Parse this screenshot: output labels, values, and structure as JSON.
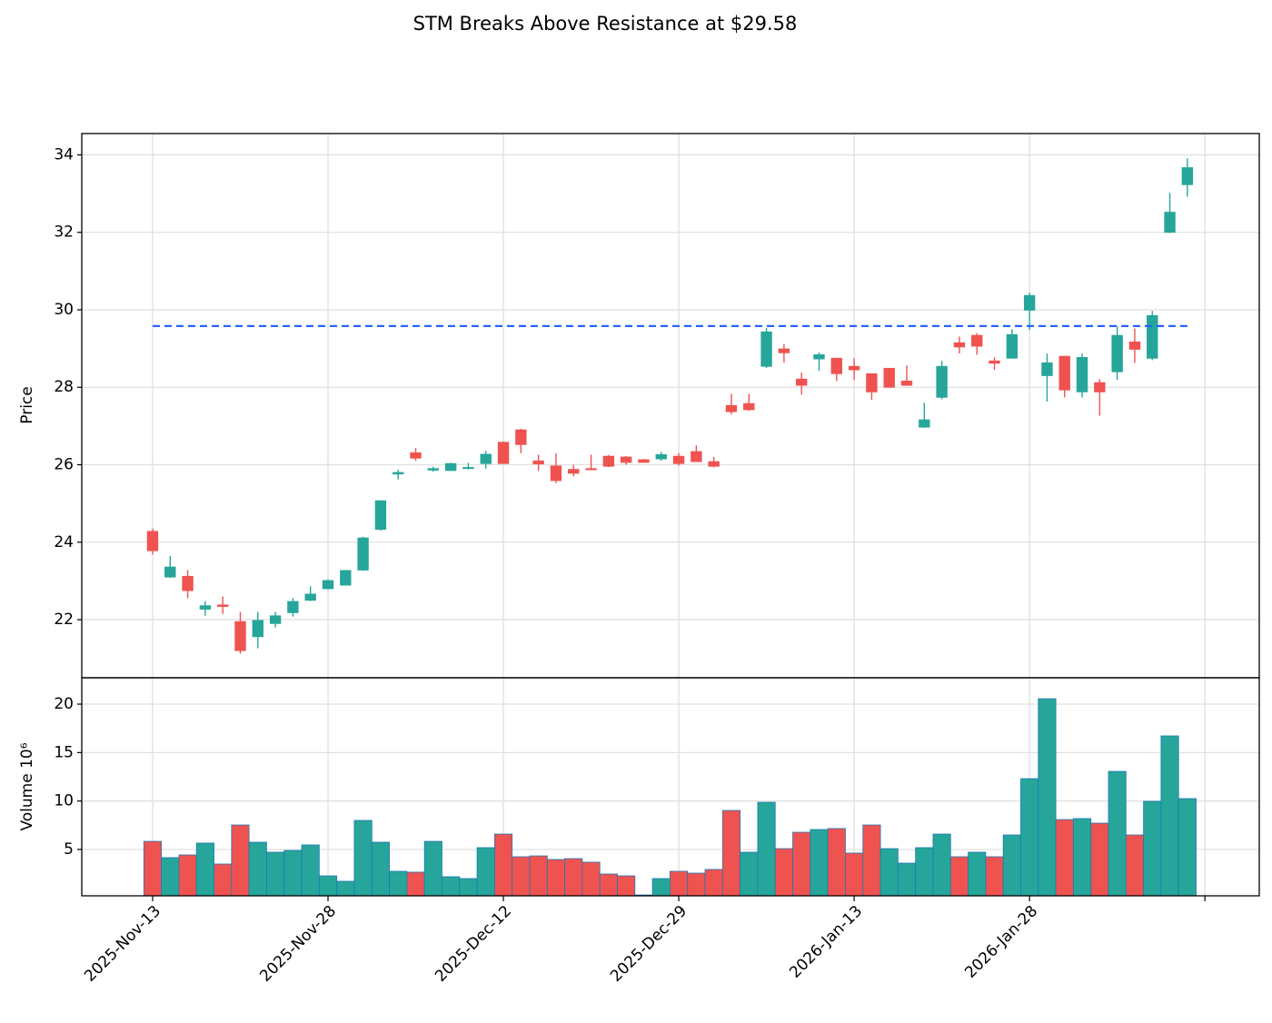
{
  "chart_data": {
    "type": "candlestick",
    "title": "STM Breaks Above Resistance at $29.58",
    "ylabel": "Price",
    "categories": [
      "2025-Nov-13",
      null,
      null,
      null,
      null,
      null,
      null,
      null,
      null,
      null,
      "2025-Nov-28",
      null,
      null,
      null,
      null,
      null,
      null,
      null,
      null,
      null,
      "2025-Dec-12",
      null,
      null,
      null,
      null,
      null,
      null,
      null,
      null,
      null,
      "2025-Dec-29",
      null,
      null,
      null,
      null,
      null,
      null,
      null,
      null,
      null,
      "2026-Jan-13",
      null,
      null,
      null,
      null,
      null,
      null,
      null,
      null,
      null,
      "2026-Jan-28",
      null,
      null,
      null,
      null,
      null,
      null,
      null,
      null,
      null
    ],
    "xlim": [
      -4.04,
      63.1
    ],
    "xticks": [
      0,
      10,
      20,
      30,
      40,
      50,
      60
    ],
    "open": [
      24.28,
      23.1,
      23.12,
      22.27,
      22.38,
      21.95,
      21.56,
      21.9,
      22.18,
      22.5,
      22.8,
      22.89,
      23.28,
      24.33,
      25.76,
      26.31,
      25.86,
      25.85,
      25.9,
      26.03,
      26.58,
      26.9,
      26.1,
      25.97,
      25.88,
      25.9,
      26.22,
      26.2,
      26.13,
      26.15,
      26.22,
      26.34,
      26.08,
      27.53,
      27.58,
      28.54,
      28.99,
      28.21,
      28.73,
      28.75,
      28.54,
      28.35,
      28.49,
      28.16,
      26.97,
      27.74,
      29.15,
      29.34,
      28.68,
      28.75,
      29.99,
      28.3,
      28.8,
      27.88,
      28.12,
      28.4,
      29.17,
      28.75,
      32.0,
      33.23
    ],
    "high": [
      24.35,
      23.64,
      23.28,
      22.48,
      22.6,
      22.2,
      22.2,
      22.2,
      22.56,
      22.86,
      23.04,
      23.28,
      24.14,
      25.08,
      25.87,
      26.43,
      25.95,
      26.05,
      26.05,
      26.36,
      26.6,
      26.93,
      26.26,
      26.29,
      26.0,
      26.26,
      26.25,
      26.22,
      26.15,
      26.33,
      26.3,
      26.5,
      26.2,
      27.83,
      27.83,
      29.53,
      29.12,
      28.38,
      28.9,
      28.76,
      28.75,
      28.36,
      28.5,
      28.56,
      27.6,
      28.68,
      29.31,
      29.4,
      28.77,
      29.5,
      30.44,
      28.87,
      28.81,
      28.87,
      28.21,
      29.57,
      29.52,
      29.97,
      33.02,
      33.91
    ],
    "low": [
      23.68,
      23.08,
      22.55,
      22.1,
      22.15,
      21.12,
      21.26,
      21.8,
      22.08,
      22.48,
      22.78,
      22.88,
      23.26,
      24.3,
      25.62,
      26.1,
      25.82,
      25.84,
      25.88,
      25.9,
      26.02,
      26.3,
      25.84,
      25.53,
      25.7,
      25.86,
      25.94,
      26.0,
      26.05,
      26.1,
      25.98,
      26.07,
      25.93,
      27.3,
      27.39,
      28.5,
      28.63,
      27.81,
      28.42,
      28.16,
      28.19,
      27.67,
      27.99,
      28.04,
      26.95,
      27.69,
      28.87,
      28.84,
      28.45,
      28.74,
      29.48,
      27.63,
      27.74,
      27.74,
      27.27,
      28.19,
      28.63,
      28.7,
      31.98,
      32.92
    ],
    "close": [
      23.78,
      23.36,
      22.75,
      22.36,
      22.34,
      21.2,
      21.98,
      22.1,
      22.47,
      22.66,
      23.01,
      23.27,
      24.11,
      25.07,
      25.8,
      26.17,
      25.9,
      26.03,
      25.93,
      26.27,
      26.03,
      26.52,
      26.02,
      25.59,
      25.78,
      25.87,
      25.96,
      26.06,
      26.06,
      26.26,
      26.03,
      26.08,
      25.96,
      27.37,
      27.42,
      29.43,
      28.89,
      28.05,
      28.84,
      28.35,
      28.45,
      27.88,
      28.0,
      28.05,
      27.16,
      28.54,
      29.04,
      29.06,
      28.62,
      29.36,
      30.37,
      28.63,
      27.93,
      28.77,
      27.88,
      29.34,
      28.98,
      29.85,
      32.52,
      33.67
    ],
    "up_color": "#26a69a",
    "down_color": "#ef5350",
    "ylim": [
      20.5,
      34.55
    ],
    "yticks": [
      22,
      24,
      26,
      28,
      30,
      32,
      34
    ],
    "grid": true,
    "hline": {
      "value": 29.58,
      "color": "#2962ff"
    },
    "volume": {
      "ylabel": "Volume  10⁶",
      "values": [
        5.84,
        4.16,
        4.44,
        5.66,
        3.5,
        7.53,
        5.75,
        4.72,
        4.9,
        5.47,
        2.28,
        1.72,
        8.0,
        5.75,
        2.75,
        2.66,
        5.84,
        2.19,
        2.0,
        5.19,
        6.59,
        4.25,
        4.34,
        3.97,
        4.06,
        3.69,
        2.47,
        2.28,
        0.31,
        2.0,
        2.75,
        2.56,
        2.94,
        9.03,
        4.72,
        9.87,
        5.09,
        6.78,
        7.06,
        7.16,
        4.63,
        7.53,
        5.09,
        3.59,
        5.19,
        6.59,
        4.25,
        4.72,
        4.25,
        6.5,
        12.31,
        20.56,
        8.09,
        8.19,
        7.72,
        13.06,
        6.5,
        9.97,
        16.72,
        10.25
      ],
      "colors": [
        "#ef5350",
        "#26a69a",
        "#ef5350",
        "#26a69a",
        "#ef5350",
        "#ef5350",
        "#26a69a",
        "#26a69a",
        "#26a69a",
        "#26a69a",
        "#26a69a",
        "#26a69a",
        "#26a69a",
        "#26a69a",
        "#26a69a",
        "#ef5350",
        "#26a69a",
        "#26a69a",
        "#26a69a",
        "#26a69a",
        "#ef5350",
        "#ef5350",
        "#ef5350",
        "#ef5350",
        "#ef5350",
        "#ef5350",
        "#ef5350",
        "#ef5350",
        "#ef5350",
        "#26a69a",
        "#ef5350",
        "#ef5350",
        "#ef5350",
        "#ef5350",
        "#26a69a",
        "#26a69a",
        "#ef5350",
        "#ef5350",
        "#26a69a",
        "#ef5350",
        "#ef5350",
        "#ef5350",
        "#26a69a",
        "#26a69a",
        "#26a69a",
        "#26a69a",
        "#ef5350",
        "#26a69a",
        "#ef5350",
        "#26a69a",
        "#26a69a",
        "#26a69a",
        "#ef5350",
        "#26a69a",
        "#ef5350",
        "#26a69a",
        "#ef5350",
        "#26a69a",
        "#26a69a",
        "#26a69a"
      ],
      "ylim": [
        0.22,
        22.72
      ],
      "yticks": [
        5,
        10,
        15,
        20
      ]
    }
  }
}
